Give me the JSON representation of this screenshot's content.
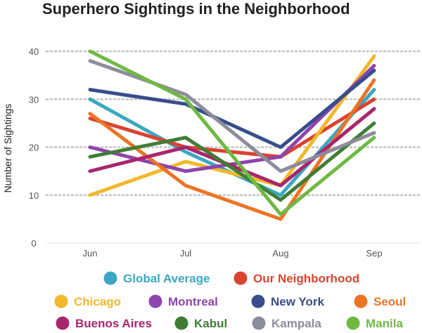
{
  "chart_data": {
    "type": "line",
    "title": "Superhero Sightings in the Neighborhood",
    "ylabel": "Number of Sightings",
    "xlabel": "",
    "categories": [
      "Jun",
      "Jul",
      "Aug",
      "Sep"
    ],
    "yticks": [
      0,
      10,
      20,
      30,
      40
    ],
    "ylim": [
      0,
      40
    ],
    "grid": "horizontal dotted",
    "legend_position": "bottom",
    "series": [
      {
        "name": "Global Average",
        "color": "#3ba7c3",
        "values": [
          30,
          19,
          10,
          32
        ]
      },
      {
        "name": "Our Neighborhood",
        "color": "#d9432f",
        "values": [
          26,
          20,
          18,
          30
        ]
      },
      {
        "name": "Chicago",
        "color": "#f1b82b",
        "values": [
          10,
          17,
          12,
          39
        ]
      },
      {
        "name": "Montreal",
        "color": "#8e44ad",
        "values": [
          20,
          15,
          18,
          37
        ]
      },
      {
        "name": "New York",
        "color": "#384d8a",
        "values": [
          32,
          29,
          20,
          36
        ]
      },
      {
        "name": "Seoul",
        "color": "#ec7424",
        "values": [
          27,
          12,
          5,
          34
        ]
      },
      {
        "name": "Buenos Aires",
        "color": "#a8266c",
        "values": [
          15,
          20,
          12,
          28
        ]
      },
      {
        "name": "Kabul",
        "color": "#3f7d33",
        "values": [
          18,
          22,
          9,
          25
        ]
      },
      {
        "name": "Kampala",
        "color": "#8c8c9c",
        "values": [
          38,
          31,
          15,
          23
        ]
      },
      {
        "name": "Manila",
        "color": "#6fb943",
        "values": [
          40,
          30,
          6,
          22
        ]
      }
    ]
  }
}
